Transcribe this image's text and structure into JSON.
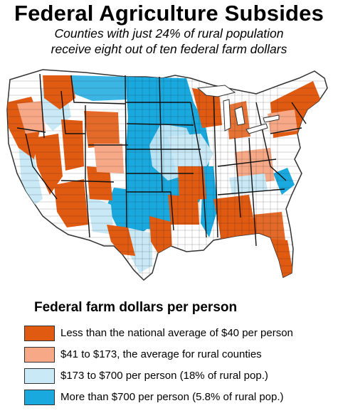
{
  "title": "Federal Agriculture Subsides",
  "subtitle_line1": "Counties with just 24% of rural population",
  "subtitle_line2": "receive eight out of ten federal farm dollars",
  "map": {
    "region": "Contiguous United States (county map)",
    "colors": {
      "below_average": "#e05a12",
      "rural_average": "#f7a987",
      "mid": "#c9e9f7",
      "high": "#19a9df",
      "none": "#ffffff",
      "border": "#333333"
    }
  },
  "legend": {
    "title": "Federal farm dollars per person",
    "items": [
      {
        "label": "Less than the national average of $40 per person",
        "color": "#e05a12"
      },
      {
        "label": "$41 to $173, the average for rural counties",
        "color": "#f7a987"
      },
      {
        "label": "$173 to $700 per person (18% of rural pop.)",
        "color": "#c9e9f7"
      },
      {
        "label": "More than $700 per person (5.8% of rural pop.)",
        "color": "#19a9df"
      }
    ]
  }
}
